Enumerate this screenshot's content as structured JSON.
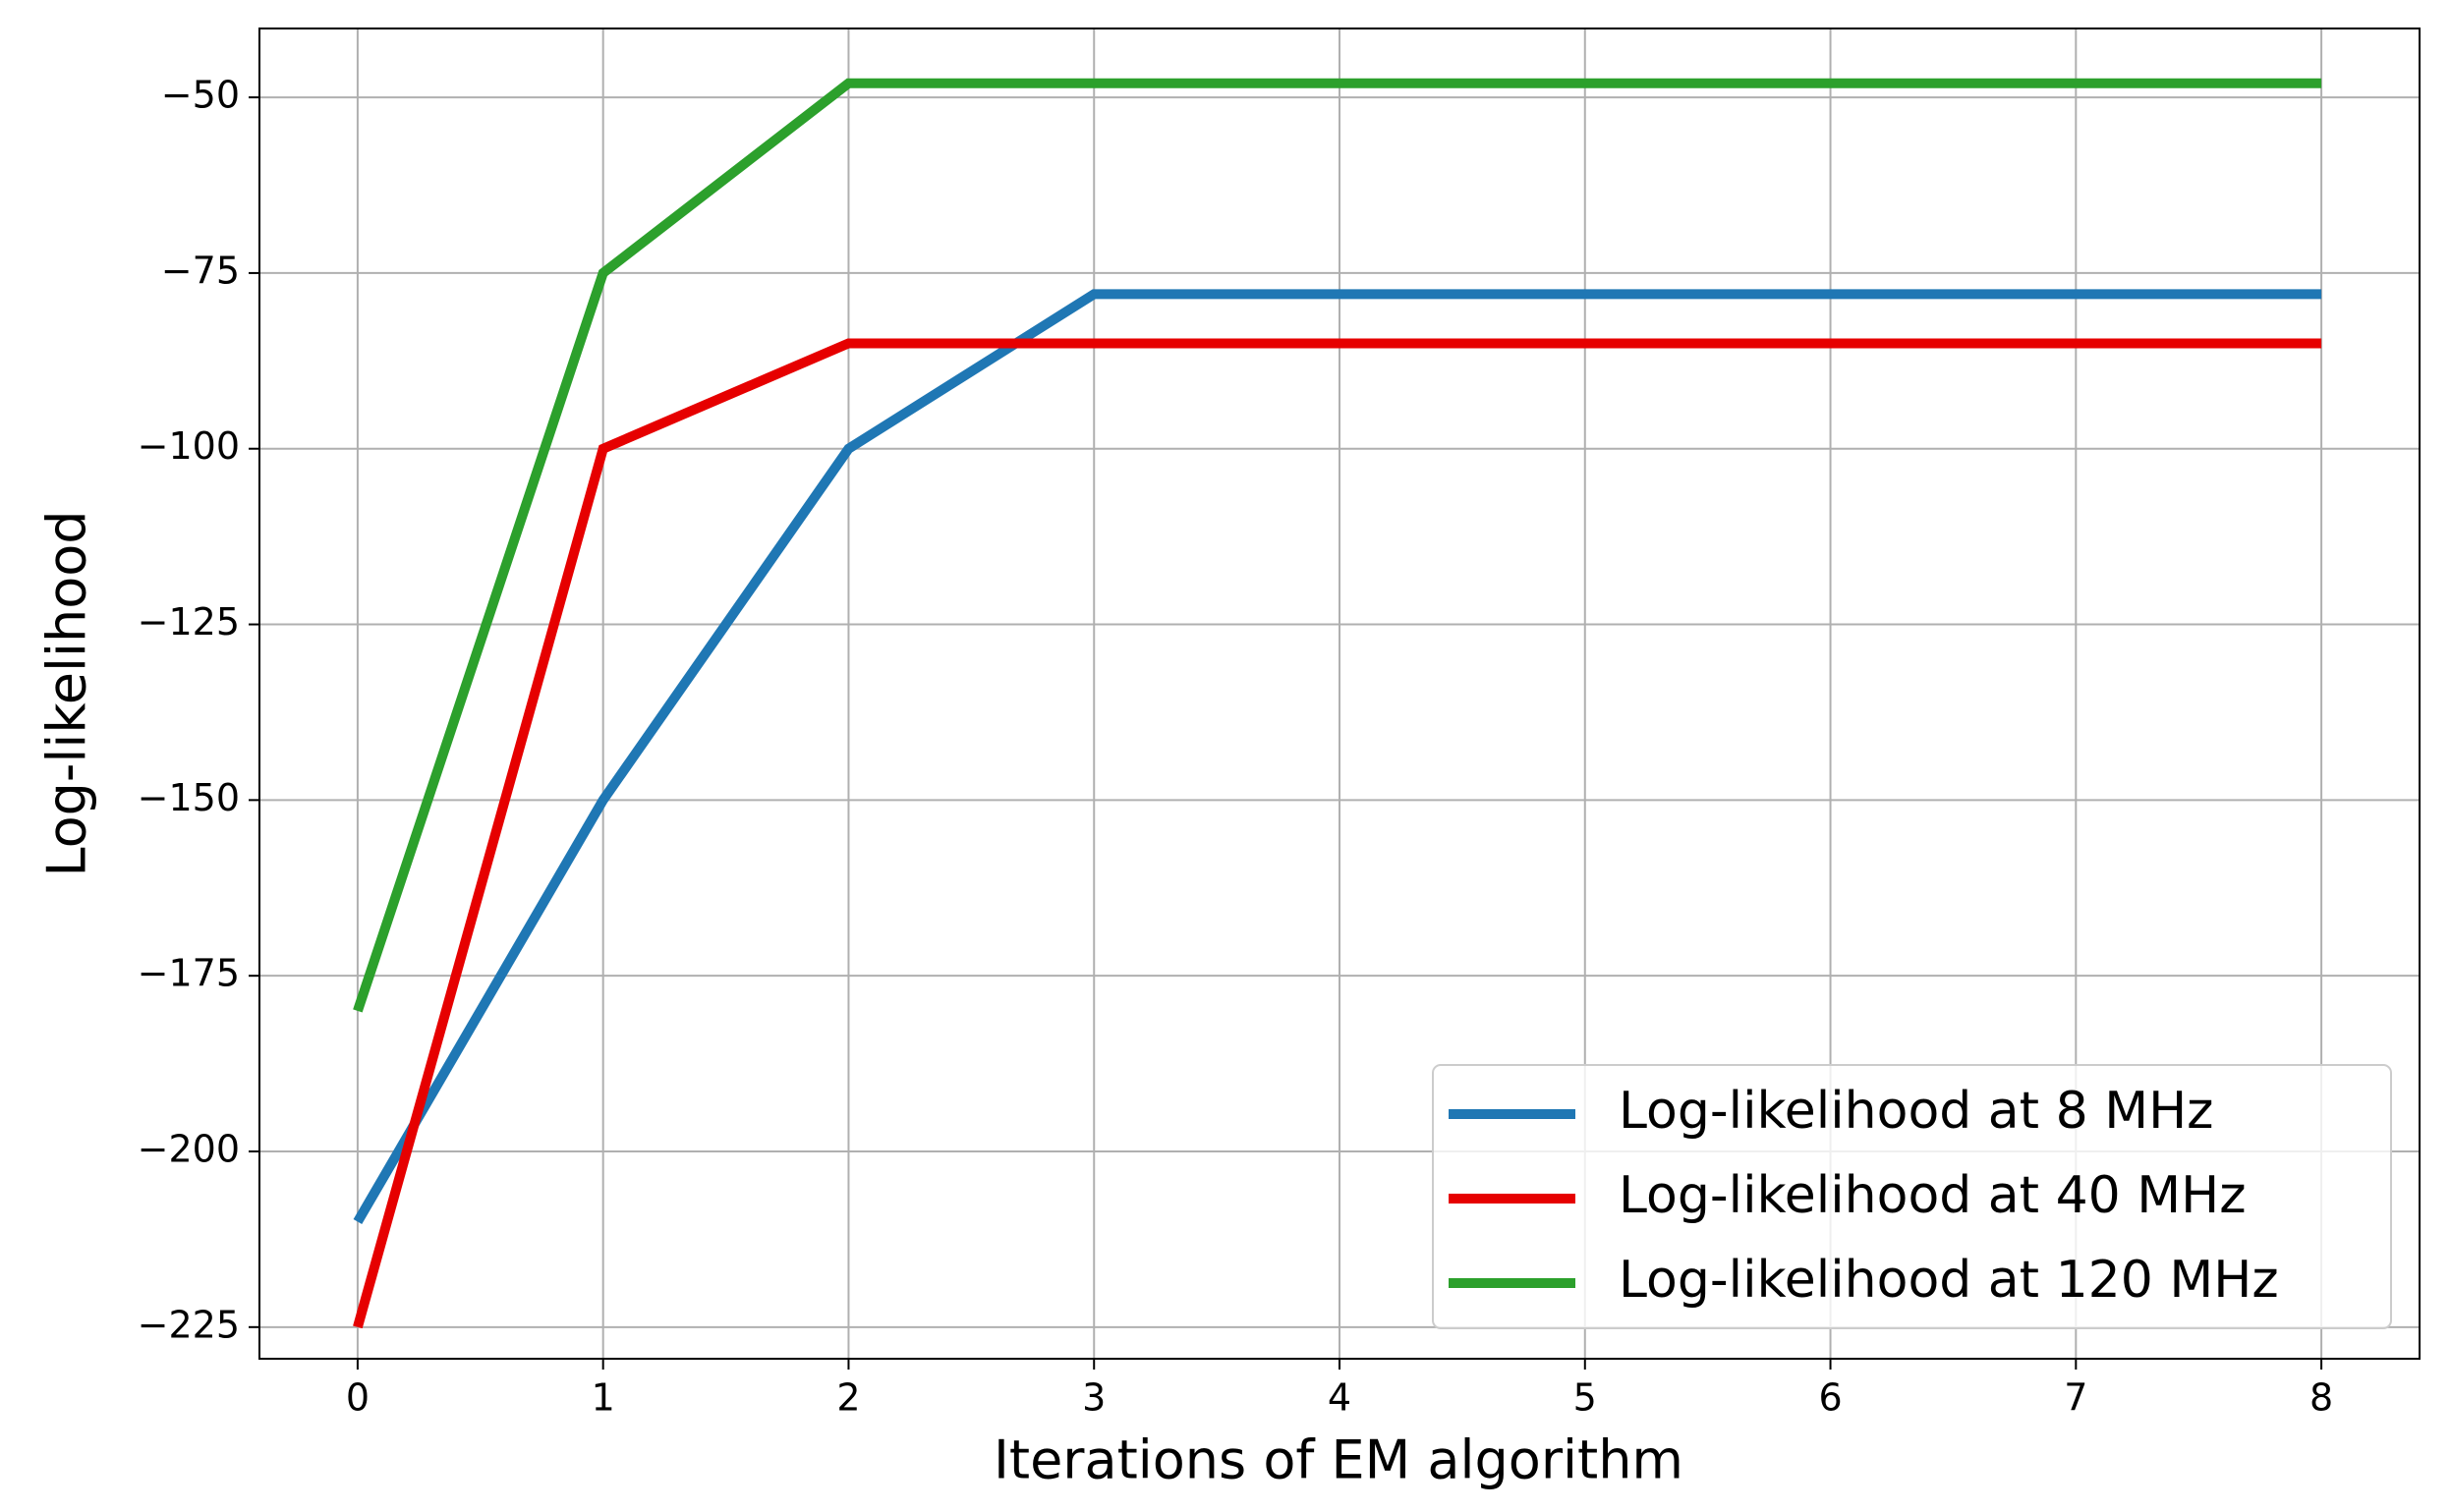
{
  "chart_data": {
    "type": "line",
    "xlabel": "Iterations of EM algorithm",
    "ylabel": "Log-likelihood",
    "x": [
      0,
      1,
      2,
      3,
      4,
      5,
      6,
      7,
      8
    ],
    "series": [
      {
        "name": "Log-likelihood at 8 MHz",
        "color": "#1f77b4",
        "values": [
          -210,
          -150,
          -100,
          -78,
          -78,
          -78,
          -78,
          -78,
          -78
        ]
      },
      {
        "name": "Log-likelihood at 40 MHz",
        "color": "#e60000",
        "values": [
          -225,
          -100,
          -85,
          -85,
          -85,
          -85,
          -85,
          -85,
          -85
        ]
      },
      {
        "name": "Log-likelihood at 120 MHz",
        "color": "#2ca02c",
        "values": [
          -180,
          -75,
          -48,
          -48,
          -48,
          -48,
          -48,
          -48,
          -48
        ]
      }
    ],
    "xlim": [
      -0.4,
      8.4
    ],
    "ylim": [
      -229.5,
      -40.2
    ],
    "xticks": [
      0,
      1,
      2,
      3,
      4,
      5,
      6,
      7,
      8
    ],
    "yticks": [
      {
        "value": -225,
        "label": "−225"
      },
      {
        "value": -200,
        "label": "−200"
      },
      {
        "value": -175,
        "label": "−175"
      },
      {
        "value": -150,
        "label": "−150"
      },
      {
        "value": -125,
        "label": "−125"
      },
      {
        "value": -100,
        "label": "−100"
      },
      {
        "value": -75,
        "label": "−75"
      },
      {
        "value": -50,
        "label": "−50"
      }
    ],
    "grid": true,
    "legend": "lower right"
  }
}
